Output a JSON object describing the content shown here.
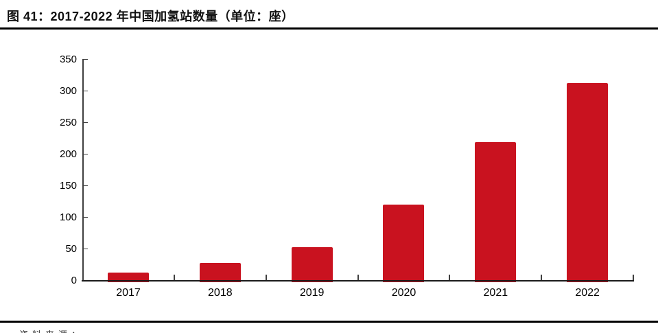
{
  "figure": {
    "title": "图 41：2017-2022 年中国加氢站数量（单位：座）",
    "source_note": "资料来源："
  },
  "chart_data": {
    "type": "bar",
    "title": "2017-2022 年中国加氢站数量（单位：座）",
    "categories": [
      "2017",
      "2018",
      "2019",
      "2020",
      "2021",
      "2022"
    ],
    "values": [
      12,
      27,
      52,
      120,
      219,
      312
    ],
    "xlabel": "",
    "ylabel": "",
    "unit": "座",
    "ylim": [
      0,
      350
    ],
    "yticks": [
      0,
      50,
      100,
      150,
      200,
      250,
      300,
      350
    ],
    "grid": false,
    "legend": "none",
    "bar_color": "#C9121F",
    "axis_color": "#3F3F3F",
    "label_color": "#000000"
  }
}
